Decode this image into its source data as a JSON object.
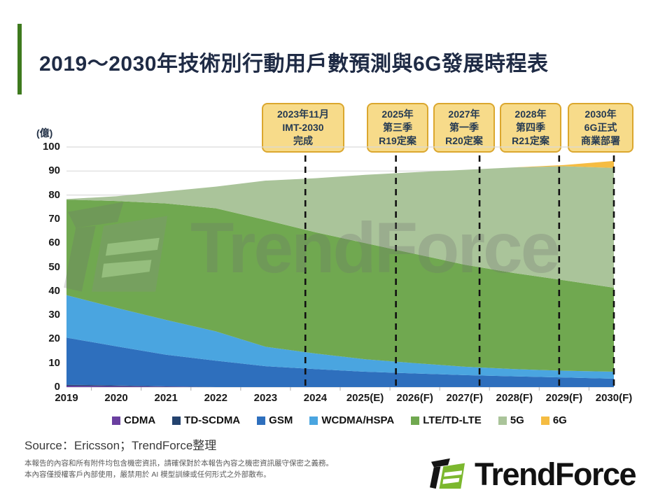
{
  "title": "2019～2030年技術別行動用戶數預測與6G發展時程表",
  "unit_label": "(億)",
  "milestones": [
    {
      "lines": [
        "2023年11月",
        "IMT-2030",
        "完成"
      ]
    },
    {
      "lines": [
        "2025年",
        "第三季",
        "R19定案"
      ]
    },
    {
      "lines": [
        "2027年",
        "第一季",
        "R20定案"
      ]
    },
    {
      "lines": [
        "2028年",
        "第四季",
        "R21定案"
      ]
    },
    {
      "lines": [
        "2030年",
        "6G正式",
        "商業部署"
      ]
    }
  ],
  "chart_data": {
    "type": "area",
    "stacked": true,
    "title": "2019～2030年技術別行動用戶數預測與6G發展時程表",
    "ylabel": "(億)",
    "ylim": [
      0,
      100
    ],
    "ytick_step": 10,
    "grid": true,
    "legend_position": "bottom",
    "x": [
      2019,
      2020,
      2021,
      2022,
      2023,
      2024,
      2025,
      2026,
      2027,
      2028,
      2029,
      2030
    ],
    "x_labels": [
      "2019",
      "2020",
      "2021",
      "2022",
      "2023",
      "2024",
      "2025(E)",
      "2026(F)",
      "2027(F)",
      "2028(F)",
      "2029(F)",
      "2030(F)"
    ],
    "series": [
      {
        "name": "CDMA",
        "color": "#6a3fa0",
        "values": [
          0.6,
          0.4,
          0.2,
          0,
          0,
          0,
          0,
          0,
          0,
          0,
          0,
          0
        ]
      },
      {
        "name": "TD-SCDMA",
        "color": "#24436e",
        "values": [
          0.4,
          0.3,
          0.1,
          0,
          0,
          0,
          0,
          0,
          0,
          0,
          0,
          0
        ]
      },
      {
        "name": "GSM",
        "color": "#2e6fbd",
        "values": [
          19.6,
          16.3,
          13.2,
          11.0,
          8.7,
          7.5,
          6.4,
          5.7,
          5.0,
          4.5,
          4.0,
          3.5
        ]
      },
      {
        "name": "WCDMA/HSPA",
        "color": "#4aa5e0",
        "values": [
          17.7,
          16.0,
          14.5,
          12.2,
          8.1,
          6.5,
          5.2,
          4.3,
          3.5,
          3.0,
          2.8,
          2.9
        ]
      },
      {
        "name": "LTE/TD-LTE",
        "color": "#70a850",
        "values": [
          39.8,
          44.5,
          48.5,
          51.3,
          52.8,
          50.5,
          48.4,
          45.5,
          42.5,
          40.0,
          37.7,
          35.0
        ]
      },
      {
        "name": "5G",
        "color": "#aac49a",
        "values": [
          0.2,
          2.0,
          5.0,
          9.0,
          16.4,
          22.5,
          28.4,
          34.0,
          39.5,
          44.0,
          47.5,
          49.9
        ]
      },
      {
        "name": "6G",
        "color": "#f5bc42",
        "values": [
          0,
          0,
          0,
          0,
          0,
          0,
          0,
          0,
          0,
          0,
          0.5,
          2.9
        ]
      }
    ],
    "milestone_x": [
      2023.8,
      2025.62,
      2027.3,
      2028.9,
      2030
    ],
    "annotations": [
      "2023年11月 IMT-2030 完成",
      "2025年第三季 R19定案",
      "2027年第一季 R20定案",
      "2028年第四季 R21定案",
      "2030年 6G正式商業部署"
    ]
  },
  "watermark": "TrendForce",
  "source": "Source：Ericsson；TrendForce整理",
  "footer": {
    "line1": "本報告的內容和所有附件均包含機密資訊，請確保對於本報告內容之機密資訊嚴守保密之義務。",
    "line2": "本內容僅授權客戶內部使用，嚴禁用於 AI 模型訓練或任何形式之外部散布。"
  },
  "logo_text": "TrendForce",
  "colors": {
    "accent_green": "#3e7a1e",
    "title_navy": "#1f2b45",
    "box_fill": "#f7db8a",
    "box_border": "#dba72e",
    "logo_green": "#7cb82f",
    "gridline": "#d9d9d9",
    "dashed_line": "#111111"
  }
}
